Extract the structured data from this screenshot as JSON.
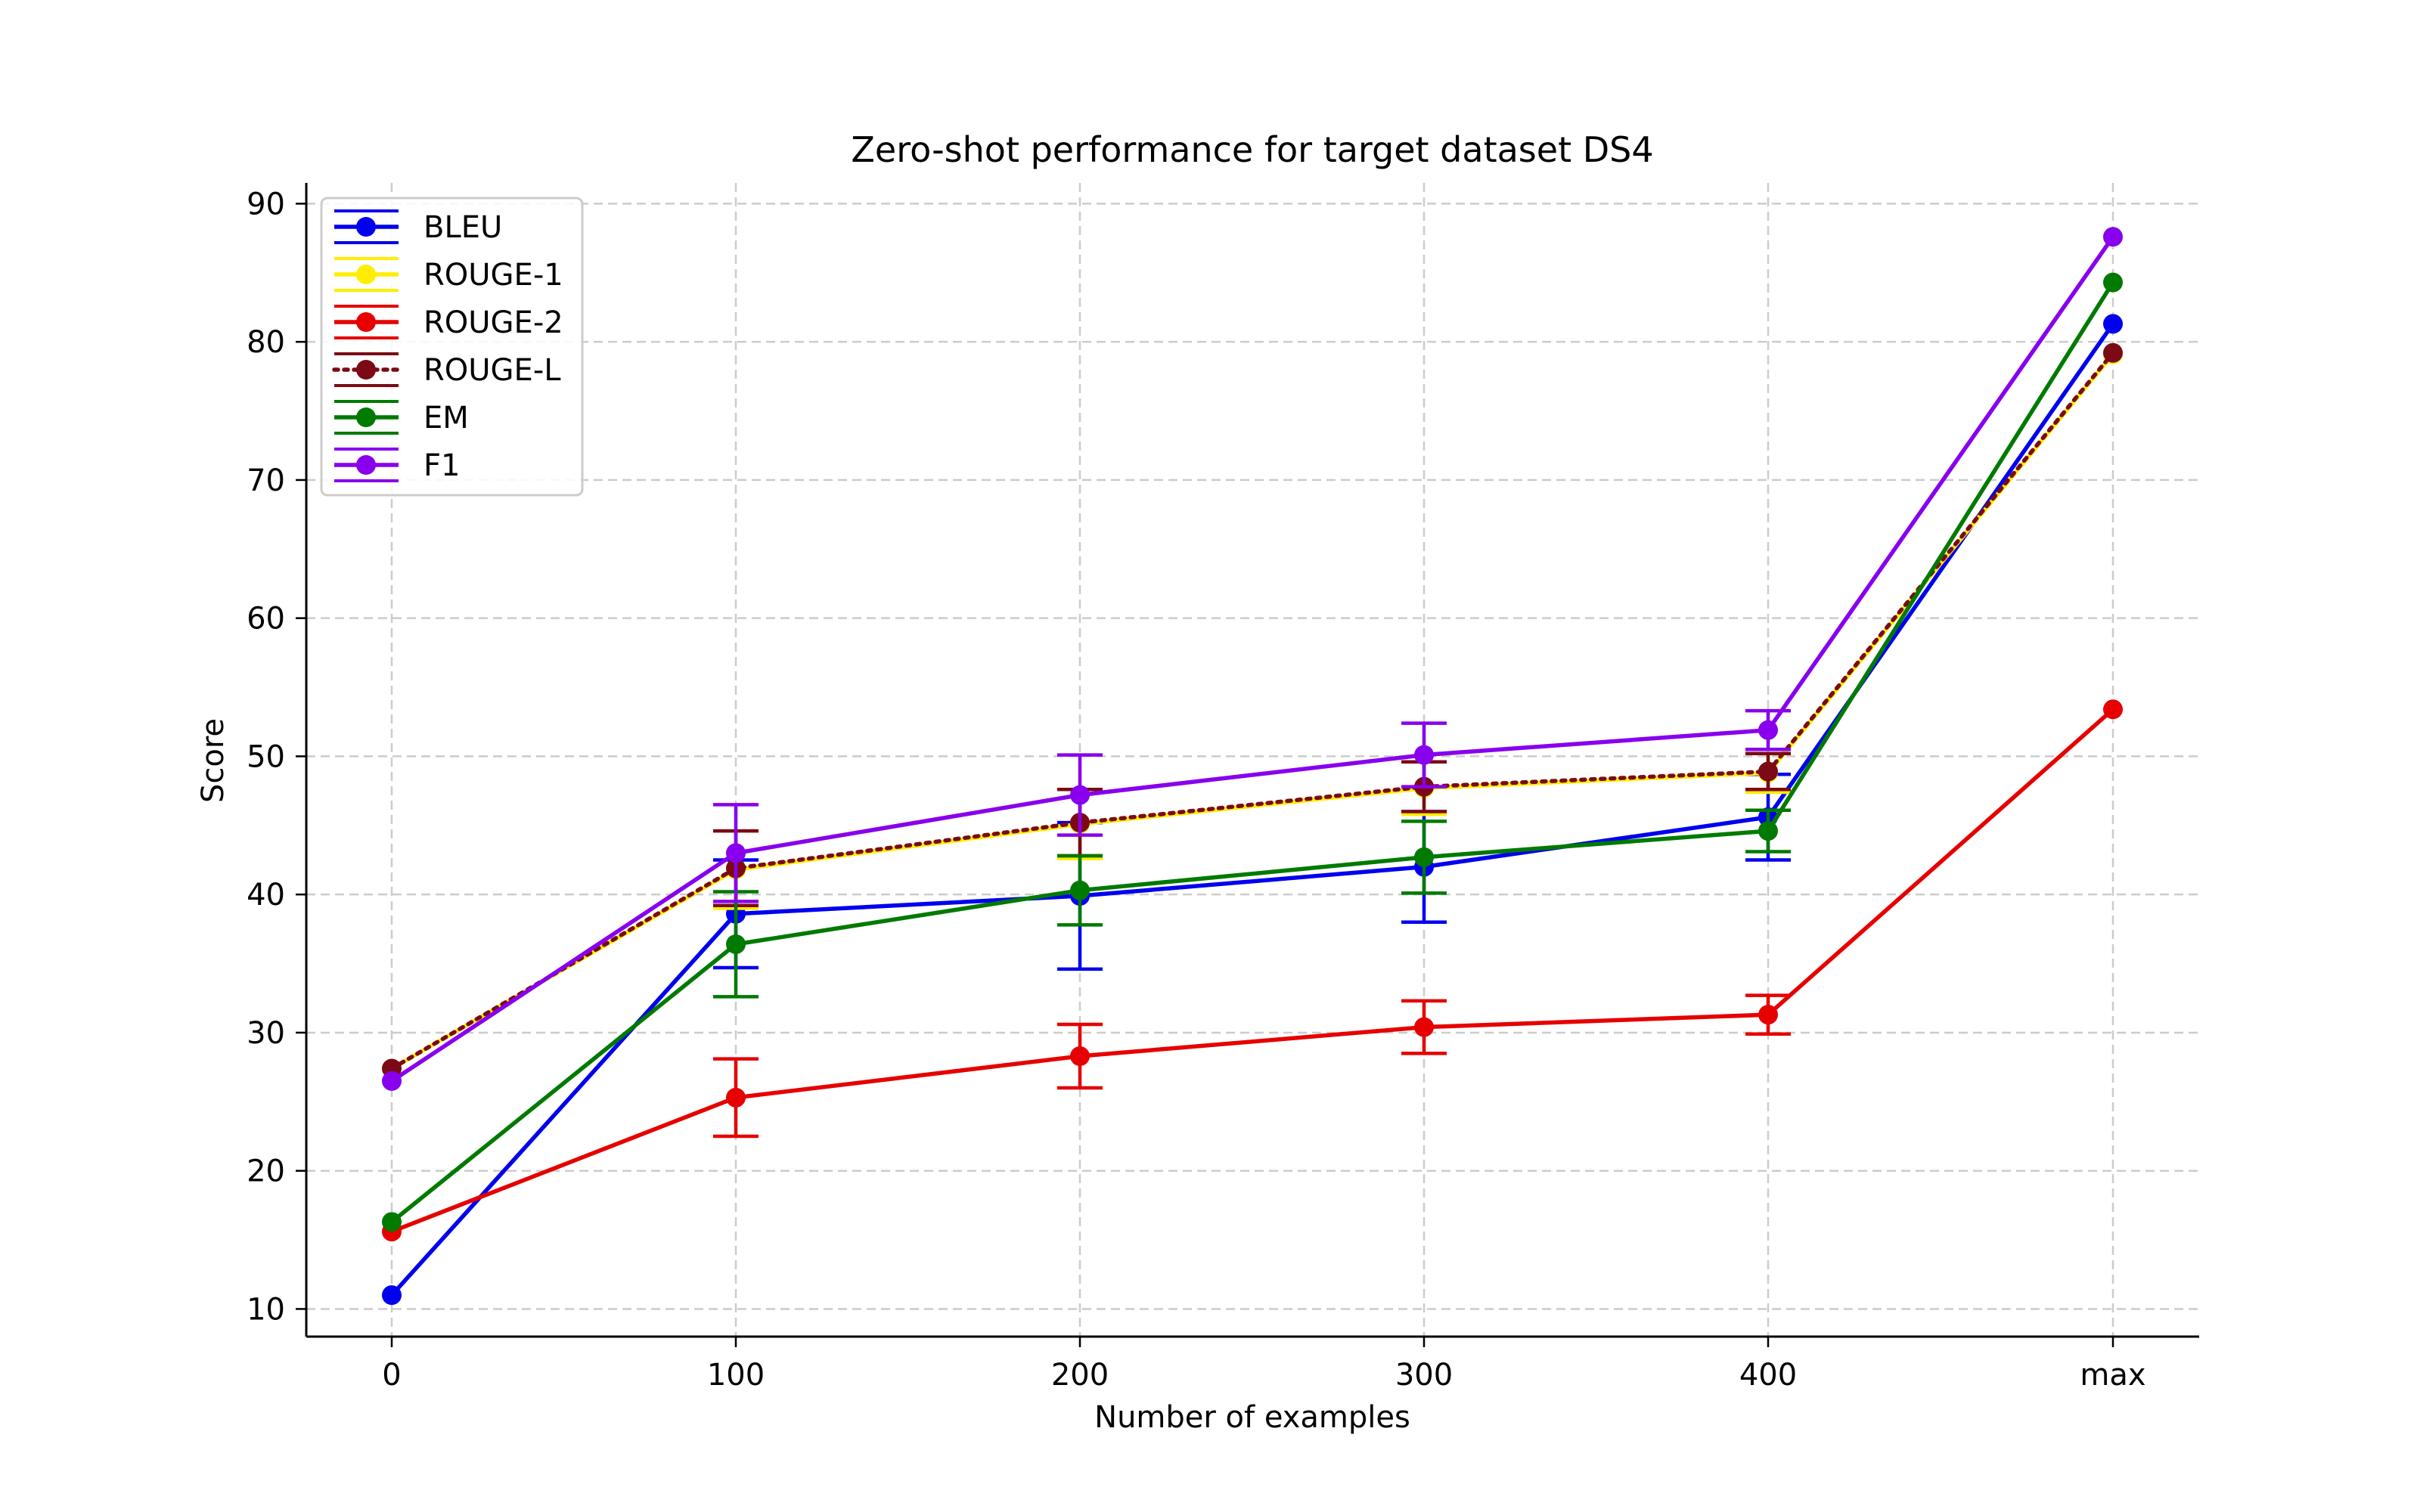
{
  "chart_data": {
    "type": "line",
    "title": "Zero-shot performance for target dataset DS4",
    "xlabel": "Number of examples",
    "ylabel": "Score",
    "categories": [
      "0",
      "100",
      "200",
      "300",
      "400",
      "max"
    ],
    "ylim": [
      8,
      91.5
    ],
    "yticks": [
      10,
      20,
      30,
      40,
      50,
      60,
      70,
      80,
      90
    ],
    "grid": true,
    "legend_position": "top-left",
    "series": [
      {
        "name": "BLEU",
        "color": "#0000ee",
        "style": "solid",
        "values": [
          11.0,
          38.6,
          39.9,
          42.0,
          45.6,
          81.3
        ],
        "errors": [
          0,
          3.9,
          5.3,
          4.0,
          3.1,
          0
        ]
      },
      {
        "name": "ROUGE-1",
        "color": "#ffee00",
        "style": "solid",
        "values": [
          27.4,
          41.8,
          45.1,
          47.7,
          48.8,
          79.1
        ],
        "errors": [
          0,
          2.8,
          2.5,
          1.9,
          1.4,
          0
        ]
      },
      {
        "name": "ROUGE-2",
        "color": "#e60000",
        "style": "solid",
        "values": [
          15.6,
          25.3,
          28.3,
          30.4,
          31.3,
          53.4
        ],
        "errors": [
          0,
          2.8,
          2.3,
          1.9,
          1.4,
          0
        ]
      },
      {
        "name": "ROUGE-L",
        "color": "#7b0a14",
        "style": "dotted",
        "values": [
          27.4,
          41.9,
          45.2,
          47.8,
          48.9,
          79.2
        ],
        "errors": [
          0,
          2.7,
          2.4,
          1.8,
          1.3,
          0
        ]
      },
      {
        "name": "EM",
        "color": "#007a00",
        "style": "solid",
        "values": [
          16.3,
          36.4,
          40.3,
          42.7,
          44.6,
          84.3
        ],
        "errors": [
          0,
          3.8,
          2.5,
          2.6,
          1.5,
          0
        ]
      },
      {
        "name": "F1",
        "color": "#8800ee",
        "style": "solid",
        "values": [
          26.5,
          43.0,
          47.2,
          50.1,
          51.9,
          87.6
        ],
        "errors": [
          0,
          3.5,
          2.9,
          2.3,
          1.4,
          0
        ]
      }
    ]
  }
}
